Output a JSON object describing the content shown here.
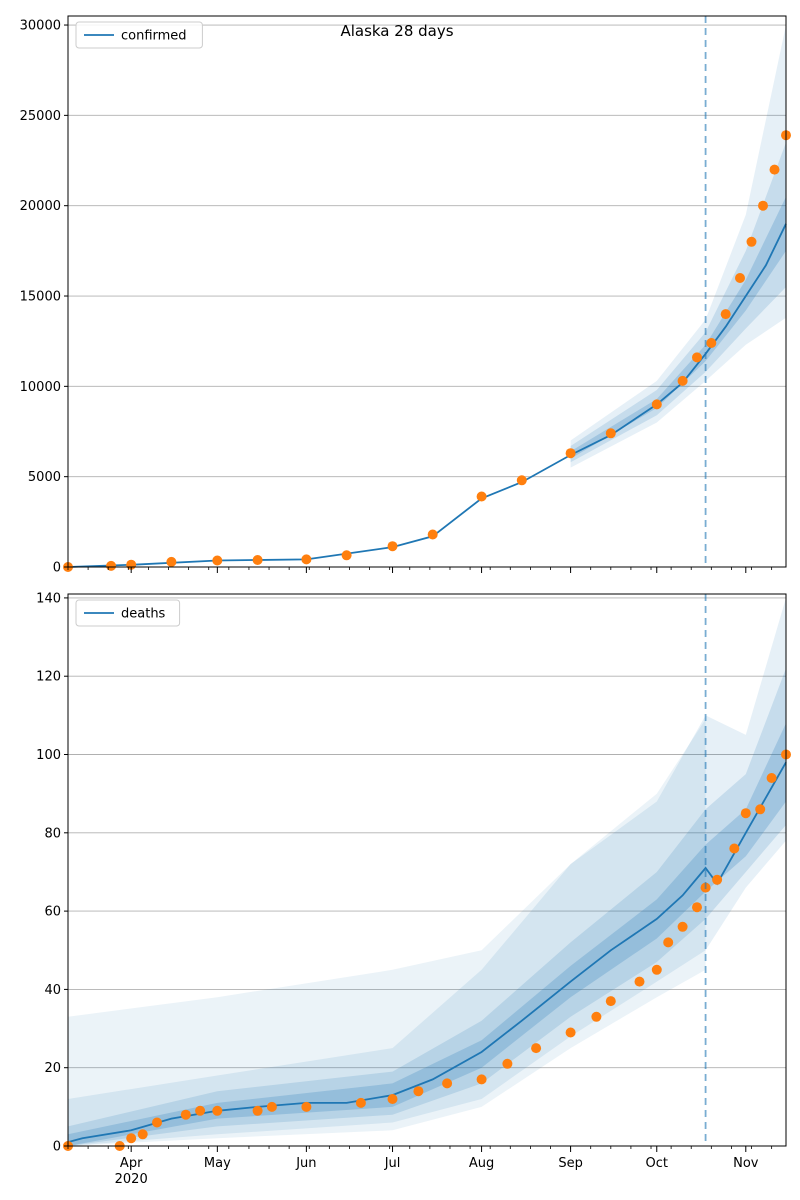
{
  "chart_data": [
    {
      "type": "line",
      "title": "Alaska 28 days",
      "legend": [
        {
          "label": "confirmed",
          "color": "#1f77b4"
        }
      ],
      "legend_position": "top-left",
      "grid": "y",
      "ylim": [
        0,
        30500
      ],
      "yticks": [
        0,
        5000,
        10000,
        15000,
        20000,
        25000,
        30000
      ],
      "xlim": [
        "2020-03-10",
        "2020-11-15"
      ],
      "xticks": [
        {
          "date": "2020-04-01",
          "label": "Apr"
        },
        {
          "date": "2020-05-01",
          "label": "May"
        },
        {
          "date": "2020-06-01",
          "label": "Jun"
        },
        {
          "date": "2020-07-01",
          "label": "Jul"
        },
        {
          "date": "2020-08-01",
          "label": "Aug"
        },
        {
          "date": "2020-09-01",
          "label": "Sep"
        },
        {
          "date": "2020-10-01",
          "label": "Oct"
        },
        {
          "date": "2020-11-01",
          "label": "Nov"
        }
      ],
      "cutoff_date": "2020-10-18",
      "series": [
        {
          "name": "confirmed",
          "color": "#1f77b4",
          "points": [
            [
              "2020-03-10",
              0
            ],
            [
              "2020-04-01",
              120
            ],
            [
              "2020-05-01",
              360
            ],
            [
              "2020-06-01",
              420
            ],
            [
              "2020-07-01",
              1100
            ],
            [
              "2020-07-15",
              1700
            ],
            [
              "2020-08-01",
              3800
            ],
            [
              "2020-08-15",
              4700
            ],
            [
              "2020-09-01",
              6200
            ],
            [
              "2020-09-15",
              7300
            ],
            [
              "2020-10-01",
              9000
            ],
            [
              "2020-10-10",
              10200
            ],
            [
              "2020-10-18",
              11800
            ],
            [
              "2020-10-25",
              13300
            ],
            [
              "2020-11-01",
              15000
            ],
            [
              "2020-11-08",
              16700
            ],
            [
              "2020-11-15",
              19000
            ]
          ],
          "bands": [
            {
              "opacity": 0.22,
              "points": [
                [
                  "2020-09-01",
                  6000,
                  6400
                ],
                [
                  "2020-10-01",
                  8800,
                  9300
                ],
                [
                  "2020-10-18",
                  11400,
                  12300
                ],
                [
                  "2020-11-01",
                  14200,
                  15900
                ],
                [
                  "2020-11-15",
                  17500,
                  20500
                ]
              ]
            },
            {
              "opacity": 0.16,
              "points": [
                [
                  "2020-09-01",
                  5800,
                  6700
                ],
                [
                  "2020-10-01",
                  8400,
                  9800
                ],
                [
                  "2020-10-18",
                  10800,
                  13000
                ],
                [
                  "2020-11-01",
                  13200,
                  17500
                ],
                [
                  "2020-11-15",
                  15500,
                  23500
                ]
              ]
            },
            {
              "opacity": 0.11,
              "points": [
                [
                  "2020-09-01",
                  5500,
                  7000
                ],
                [
                  "2020-10-01",
                  8000,
                  10300
                ],
                [
                  "2020-10-18",
                  10300,
                  13700
                ],
                [
                  "2020-11-01",
                  12300,
                  19500
                ],
                [
                  "2020-11-15",
                  13800,
                  30000
                ]
              ]
            }
          ]
        },
        {
          "name": "",
          "type": "scatter",
          "color": "#ff7f0e",
          "points": [
            [
              "2020-03-10",
              0
            ],
            [
              "2020-03-25",
              60
            ],
            [
              "2020-04-01",
              130
            ],
            [
              "2020-04-15",
              280
            ],
            [
              "2020-05-01",
              360
            ],
            [
              "2020-05-15",
              390
            ],
            [
              "2020-06-01",
              420
            ],
            [
              "2020-06-15",
              650
            ],
            [
              "2020-07-01",
              1150
            ],
            [
              "2020-07-15",
              1800
            ],
            [
              "2020-08-01",
              3900
            ],
            [
              "2020-08-15",
              4800
            ],
            [
              "2020-09-01",
              6300
            ],
            [
              "2020-09-15",
              7400
            ],
            [
              "2020-10-01",
              9000
            ],
            [
              "2020-10-10",
              10300
            ],
            [
              "2020-10-15",
              11600
            ],
            [
              "2020-10-20",
              12400
            ],
            [
              "2020-10-25",
              14000
            ],
            [
              "2020-10-30",
              16000
            ],
            [
              "2020-11-03",
              18000
            ],
            [
              "2020-11-07",
              20000
            ],
            [
              "2020-11-11",
              22000
            ],
            [
              "2020-11-15",
              23900
            ]
          ]
        }
      ]
    },
    {
      "type": "line",
      "title": "",
      "legend": [
        {
          "label": "deaths",
          "color": "#1f77b4"
        }
      ],
      "legend_position": "top-left",
      "grid": "y",
      "ylim": [
        0,
        141
      ],
      "yticks": [
        0,
        20,
        40,
        60,
        80,
        100,
        120,
        140
      ],
      "xlim": [
        "2020-03-10",
        "2020-11-15"
      ],
      "xticks": [
        {
          "date": "2020-04-01",
          "label": "Apr",
          "sublabel": "2020"
        },
        {
          "date": "2020-05-01",
          "label": "May"
        },
        {
          "date": "2020-06-01",
          "label": "Jun"
        },
        {
          "date": "2020-07-01",
          "label": "Jul"
        },
        {
          "date": "2020-08-01",
          "label": "Aug"
        },
        {
          "date": "2020-09-01",
          "label": "Sep"
        },
        {
          "date": "2020-10-01",
          "label": "Oct"
        },
        {
          "date": "2020-11-01",
          "label": "Nov"
        }
      ],
      "cutoff_date": "2020-10-18",
      "series": [
        {
          "name": "deaths",
          "color": "#1f77b4",
          "points": [
            [
              "2020-03-10",
              1
            ],
            [
              "2020-03-15",
              2
            ],
            [
              "2020-04-01",
              4
            ],
            [
              "2020-04-15",
              7
            ],
            [
              "2020-05-01",
              9
            ],
            [
              "2020-05-15",
              10
            ],
            [
              "2020-06-01",
              11
            ],
            [
              "2020-06-15",
              11
            ],
            [
              "2020-07-01",
              13
            ],
            [
              "2020-07-15",
              17
            ],
            [
              "2020-08-01",
              24
            ],
            [
              "2020-08-15",
              32
            ],
            [
              "2020-09-01",
              42
            ],
            [
              "2020-09-15",
              50
            ],
            [
              "2020-10-01",
              58
            ],
            [
              "2020-10-10",
              64
            ],
            [
              "2020-10-18",
              71
            ],
            [
              "2020-10-22",
              67
            ],
            [
              "2020-11-01",
              80
            ],
            [
              "2020-11-15",
              98
            ]
          ],
          "bands": [
            {
              "opacity": 0.22,
              "points": [
                [
                  "2020-03-10",
                  0,
                  3
                ],
                [
                  "2020-05-01",
                  7,
                  11
                ],
                [
                  "2020-07-01",
                  10,
                  16
                ],
                [
                  "2020-08-01",
                  20,
                  27
                ],
                [
                  "2020-09-01",
                  38,
                  46
                ],
                [
                  "2020-10-01",
                  53,
                  63
                ],
                [
                  "2020-10-18",
                  65,
                  77
                ],
                [
                  "2020-11-01",
                  74,
                  86
                ],
                [
                  "2020-11-15",
                  88,
                  108
                ]
              ]
            },
            {
              "opacity": 0.16,
              "points": [
                [
                  "2020-03-10",
                  0,
                  5
                ],
                [
                  "2020-05-01",
                  5,
                  14
                ],
                [
                  "2020-07-01",
                  8,
                  19
                ],
                [
                  "2020-08-01",
                  16,
                  32
                ],
                [
                  "2020-09-01",
                  33,
                  52
                ],
                [
                  "2020-10-01",
                  47,
                  70
                ],
                [
                  "2020-10-18",
                  58,
                  86
                ],
                [
                  "2020-11-01",
                  70,
                  95
                ],
                [
                  "2020-11-15",
                  82,
                  122
                ]
              ]
            },
            {
              "opacity": 0.11,
              "points": [
                [
                  "2020-03-10",
                  0,
                  12
                ],
                [
                  "2020-05-01",
                  3,
                  18
                ],
                [
                  "2020-07-01",
                  6,
                  25
                ],
                [
                  "2020-08-01",
                  12,
                  45
                ],
                [
                  "2020-09-01",
                  28,
                  72
                ],
                [
                  "2020-10-01",
                  42,
                  88
                ],
                [
                  "2020-10-18",
                  50,
                  110
                ],
                [
                  "2020-11-01",
                  66,
                  105
                ],
                [
                  "2020-11-15",
                  78,
                  140
                ]
              ]
            },
            {
              "opacity": 0.09,
              "points": [
                [
                  "2020-03-10",
                  0,
                  33
                ],
                [
                  "2020-05-01",
                  2,
                  38
                ],
                [
                  "2020-07-01",
                  4,
                  45
                ],
                [
                  "2020-08-01",
                  10,
                  50
                ],
                [
                  "2020-09-01",
                  25,
                  72
                ],
                [
                  "2020-10-01",
                  38,
                  90
                ],
                [
                  "2020-10-18",
                  45,
                  109
                ]
              ]
            }
          ]
        },
        {
          "name": "",
          "type": "scatter",
          "color": "#ff7f0e",
          "points": [
            [
              "2020-03-10",
              0
            ],
            [
              "2020-03-28",
              0
            ],
            [
              "2020-04-01",
              2
            ],
            [
              "2020-04-05",
              3
            ],
            [
              "2020-04-10",
              6
            ],
            [
              "2020-04-20",
              8
            ],
            [
              "2020-04-25",
              9
            ],
            [
              "2020-05-01",
              9
            ],
            [
              "2020-05-15",
              9
            ],
            [
              "2020-05-20",
              10
            ],
            [
              "2020-06-01",
              10
            ],
            [
              "2020-06-20",
              11
            ],
            [
              "2020-07-01",
              12
            ],
            [
              "2020-07-10",
              14
            ],
            [
              "2020-07-20",
              16
            ],
            [
              "2020-08-01",
              17
            ],
            [
              "2020-08-10",
              21
            ],
            [
              "2020-08-20",
              25
            ],
            [
              "2020-09-01",
              29
            ],
            [
              "2020-09-10",
              33
            ],
            [
              "2020-09-15",
              37
            ],
            [
              "2020-09-25",
              42
            ],
            [
              "2020-10-01",
              45
            ],
            [
              "2020-10-05",
              52
            ],
            [
              "2020-10-10",
              56
            ],
            [
              "2020-10-15",
              61
            ],
            [
              "2020-10-18",
              66
            ],
            [
              "2020-10-22",
              68
            ],
            [
              "2020-10-28",
              76
            ],
            [
              "2020-11-01",
              85
            ],
            [
              "2020-11-06",
              86
            ],
            [
              "2020-11-10",
              94
            ],
            [
              "2020-11-15",
              100
            ]
          ]
        }
      ]
    }
  ]
}
